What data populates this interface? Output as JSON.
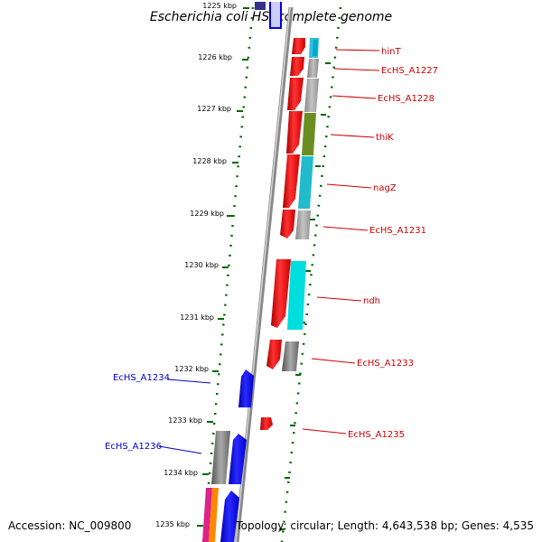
{
  "title": "Escherichia coli HS, complete genome",
  "accession_label": "Accession: NC_009800",
  "summary_label": "Topology: circular; Length: 4,643,538 bp; Genes: 4,535",
  "colors": {
    "forward": "#ff0000",
    "reverse": "#0000ee",
    "forward_label": "#cc0000",
    "reverse_label": "#0000cc",
    "tick": "#006600",
    "backbone": "#999999"
  },
  "ticks": [
    "1225 kbp",
    "1226 kbp",
    "1227 kbp",
    "1228 kbp",
    "1229 kbp",
    "1230 kbp",
    "1231 kbp",
    "1232 kbp",
    "1233 kbp",
    "1234 kbp",
    "1235 kbp"
  ],
  "genes": [
    {
      "name": "hinT",
      "strand": "forward",
      "cog_color": "#33bbdd"
    },
    {
      "name": "EcHS_A1227",
      "strand": "forward",
      "cog_color": "#aaaaaa"
    },
    {
      "name": "EcHS_A1228",
      "strand": "forward",
      "cog_color": "#aaaaaa"
    },
    {
      "name": "thiK",
      "strand": "forward",
      "cog_color": "#6b8e23"
    },
    {
      "name": "nagZ",
      "strand": "forward",
      "cog_color": "#22bbcc"
    },
    {
      "name": "EcHS_A1231",
      "strand": "forward",
      "cog_color": "#aaaaaa"
    },
    {
      "name": "ndh",
      "strand": "forward",
      "cog_color": "#00dddd"
    },
    {
      "name": "EcHS_A1233",
      "strand": "forward",
      "cog_color": "#666666"
    },
    {
      "name": "EcHS_A1234",
      "strand": "reverse",
      "cog_color": ""
    },
    {
      "name": "EcHS_A1235",
      "strand": "forward",
      "cog_color": ""
    },
    {
      "name": "EcHS_A1236",
      "strand": "reverse",
      "cog_color": "#666666"
    }
  ]
}
